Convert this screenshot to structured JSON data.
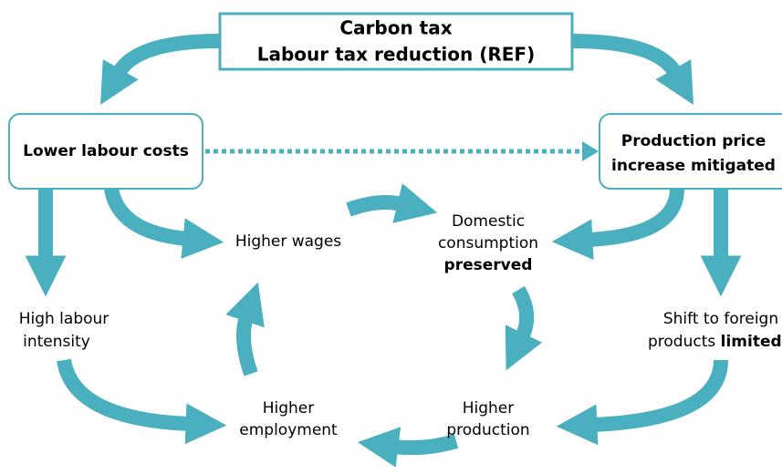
{
  "top_box": {
    "lines": [
      "Carbon tax",
      "Labour tax reduction (REF)"
    ]
  },
  "left_box": {
    "lines": [
      "Lower labour costs"
    ]
  },
  "right_box": {
    "lines": [
      "Production price",
      "increase mitigated"
    ]
  },
  "nodes": [
    {
      "lines": [
        "Higher wages"
      ]
    },
    {
      "lines": [
        "Domestic",
        "consumption"
      ],
      "emphasis": "preserved"
    },
    {
      "lines": [
        "High labour",
        "intensity"
      ]
    },
    {
      "lines": [
        "Shift to foreign",
        "products"
      ],
      "emphasis": "limited"
    },
    {
      "lines": [
        "Higher",
        "employment"
      ]
    },
    {
      "lines": [
        "Higher",
        "production"
      ]
    }
  ]
}
